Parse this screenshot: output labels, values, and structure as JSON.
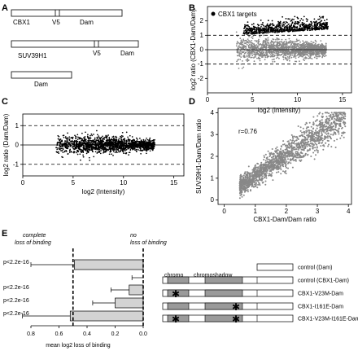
{
  "panel_a": {
    "letter": "A",
    "constructs": [
      {
        "segments": [
          "CBX1",
          "V5",
          "Dam"
        ]
      },
      {
        "segments": [
          "SUV39H1",
          "V5",
          "Dam"
        ]
      },
      {
        "segments": [
          "Dam"
        ]
      }
    ]
  },
  "chart_data": [
    {
      "panel": "B",
      "type": "scatter",
      "title": "",
      "xlabel": "log2 (Intensity)",
      "ylabel": "log2 ratio (CBX1-Dam/Dam)",
      "xlim": [
        0,
        16
      ],
      "ylim": [
        -3,
        3
      ],
      "xticks": [
        0,
        5,
        10,
        15
      ],
      "yticks": [
        -2,
        -1,
        0,
        1,
        2
      ],
      "hlines": [
        {
          "y": 0,
          "style": "solid"
        },
        {
          "y": 1,
          "style": "dashed"
        },
        {
          "y": -1,
          "style": "dashed"
        }
      ],
      "legend": {
        "placement": "top-left",
        "entries": [
          {
            "name": "CBX1 targets",
            "color": "#000000"
          }
        ]
      },
      "series": [
        {
          "name": "CBX1 targets",
          "color": "#000000",
          "description_range": {
            "x": [
              4,
              13.5
            ],
            "y": [
              1,
              2.2
            ]
          }
        },
        {
          "name": "",
          "color": "#888888",
          "description_range": {
            "x": [
              3,
              13
            ],
            "y": [
              -1.2,
              1.2
            ]
          }
        }
      ]
    },
    {
      "panel": "C",
      "type": "scatter",
      "xlabel": "log2 (Intensity)",
      "ylabel": "log2 ratio (Dam/Dam)",
      "xlim": [
        0,
        16
      ],
      "ylim": [
        -1.6,
        1.6
      ],
      "xticks": [
        0,
        5,
        10,
        15
      ],
      "yticks": [
        -1,
        0,
        1
      ],
      "hlines": [
        {
          "y": 0,
          "style": "solid"
        },
        {
          "y": 1,
          "style": "dashed"
        },
        {
          "y": -1,
          "style": "dashed"
        }
      ],
      "series": [
        {
          "name": "",
          "color": "#000000"
        }
      ]
    },
    {
      "panel": "D",
      "type": "scatter",
      "xlabel": "CBX1-Dam/Dam ratio",
      "ylabel": "SUV39H1-Dam/Dam ratio",
      "xlim": [
        -0.2,
        4.1
      ],
      "ylim": [
        -0.2,
        4.2
      ],
      "xticks": [
        0,
        1,
        2,
        3,
        4
      ],
      "yticks": [
        0,
        1,
        2,
        3,
        4
      ],
      "annotation": "r=0.76",
      "series": [
        {
          "name": "",
          "color": "#888888"
        }
      ]
    },
    {
      "panel": "E",
      "type": "bar",
      "orientation": "horizontal",
      "xlabel": "mean log2 loss of binding",
      "xlim": [
        0.8,
        0
      ],
      "xticks": [
        "0.8",
        "0.6",
        "0.4",
        "0.2",
        "0.0"
      ],
      "reference_lines": [
        {
          "x": 0.5,
          "label_line1": "complete",
          "label_line2": "loss of binding"
        },
        {
          "x": 0.0,
          "label_line1": "no",
          "label_line2": "loss of binding"
        }
      ],
      "categories": [
        "control (Dam)",
        "control (CBX1-Dam)",
        "CBX1-V23M-Dam",
        "CBX1-I161E-Dam",
        "CBX1-V23M-I161E-Dam"
      ],
      "values": [
        0.49,
        0,
        0.1,
        0.2,
        0.52
      ],
      "errors": [
        0.31,
        0.08,
        0.13,
        0.16,
        0.34
      ],
      "pvalues": [
        "p<2.2e-16",
        "",
        "p<2.2e-16",
        "p<2.2e-16",
        "p<2.2e-16"
      ],
      "domains": [
        "chromo",
        "chromoshadow"
      ],
      "mutations": [
        [],
        [],
        [
          "chromo"
        ],
        [
          "chromoshadow"
        ],
        [
          "chromo",
          "chromoshadow"
        ]
      ]
    }
  ]
}
